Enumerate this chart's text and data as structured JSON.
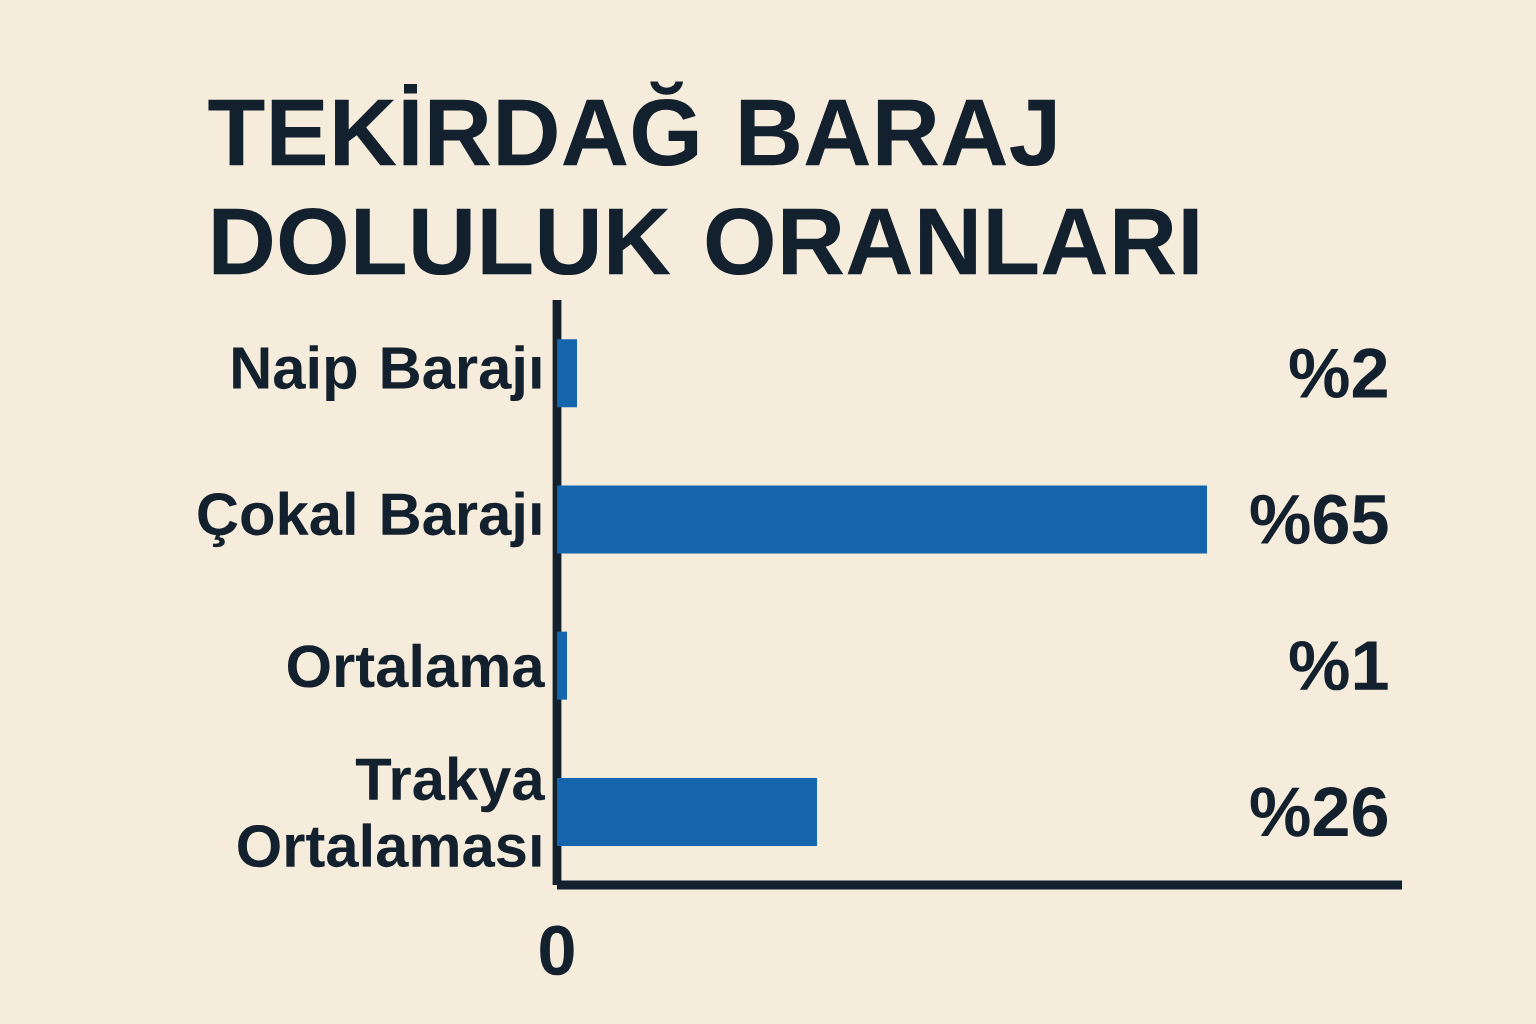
{
  "chart_data": {
    "type": "bar",
    "orientation": "horizontal",
    "title": "TEKİRDAĞ BARAJ DOLULUK ORANLARI",
    "categories": [
      "Naip Barajı",
      "Çokal Barajı",
      "Ortalama",
      "Trakya Ortalaması"
    ],
    "values": [
      2,
      65,
      1,
      26
    ],
    "value_labels": [
      "%2",
      "%65",
      "%1",
      "%26"
    ],
    "color": "#1565ad",
    "annotations": [
      "0"
    ]
  }
}
